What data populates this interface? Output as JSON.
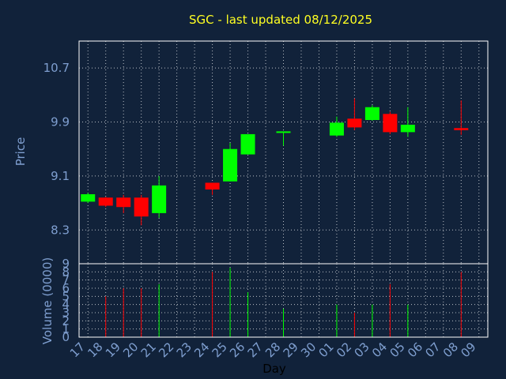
{
  "chart_data": {
    "type": "candlestick",
    "title": "SGC - last updated 08/12/2025",
    "xlabel": "Day",
    "price_axis": {
      "label": "Price",
      "ylim": [
        7.8,
        11.1
      ],
      "ticks": [
        "10.7",
        "9.9",
        "9.1",
        "8.3"
      ],
      "grid": true
    },
    "volume_axis": {
      "label": "Volume (0000)",
      "ylim": [
        0,
        9
      ],
      "ticks": [
        "9",
        "8",
        "7",
        "6",
        "5",
        "4",
        "3",
        "2",
        "1",
        "0"
      ],
      "grid": true
    },
    "days": [
      "17",
      "18",
      "19",
      "20",
      "21",
      "22",
      "23",
      "24",
      "25",
      "26",
      "27",
      "28",
      "29",
      "30",
      "01",
      "02",
      "03",
      "04",
      "05",
      "06",
      "07",
      "08",
      "09"
    ],
    "candles": [
      {
        "day": "17",
        "open": 8.72,
        "close": 8.83,
        "high": 8.85,
        "low": 8.7,
        "volume": 0
      },
      {
        "day": "18",
        "open": 8.78,
        "close": 8.66,
        "high": 8.79,
        "low": 8.64,
        "volume": 5
      },
      {
        "day": "19",
        "open": 8.78,
        "close": 8.64,
        "high": 8.82,
        "low": 8.55,
        "volume": 6
      },
      {
        "day": "20",
        "open": 8.78,
        "close": 8.5,
        "high": 8.82,
        "low": 8.37,
        "volume": 6
      },
      {
        "day": "21",
        "open": 8.55,
        "close": 8.96,
        "high": 9.1,
        "low": 8.48,
        "volume": 6.5
      },
      {
        "day": "24",
        "open": 9.0,
        "close": 8.9,
        "high": 9.0,
        "low": 8.82,
        "volume": 8
      },
      {
        "day": "25",
        "open": 9.02,
        "close": 9.5,
        "high": 9.59,
        "low": 9.02,
        "volume": 8.5
      },
      {
        "day": "26",
        "open": 9.42,
        "close": 9.72,
        "high": 9.72,
        "low": 9.42,
        "volume": 5.5
      },
      {
        "day": "28",
        "open": 9.73,
        "close": 9.75,
        "high": 9.76,
        "low": 9.55,
        "volume": 3.5
      },
      {
        "day": "01",
        "open": 9.7,
        "close": 9.89,
        "high": 9.98,
        "low": 9.68,
        "volume": 4
      },
      {
        "day": "02",
        "open": 9.95,
        "close": 9.82,
        "high": 10.25,
        "low": 9.78,
        "volume": 3
      },
      {
        "day": "03",
        "open": 9.93,
        "close": 10.12,
        "high": 10.15,
        "low": 9.92,
        "volume": 4
      },
      {
        "day": "04",
        "open": 10.02,
        "close": 9.75,
        "high": 10.05,
        "low": 9.72,
        "volume": 6.5
      },
      {
        "day": "05",
        "open": 9.75,
        "close": 9.86,
        "high": 10.12,
        "low": 9.68,
        "volume": 4
      },
      {
        "day": "08",
        "open": 9.81,
        "close": 9.78,
        "high": 10.22,
        "low": 9.71,
        "volume": 8
      }
    ],
    "colors": {
      "up": "#00ff00",
      "down": "#ff0000",
      "background": "#11223a",
      "grid": "#ffffff",
      "tick": "#7f9fd0",
      "title": "#ffff22"
    }
  }
}
